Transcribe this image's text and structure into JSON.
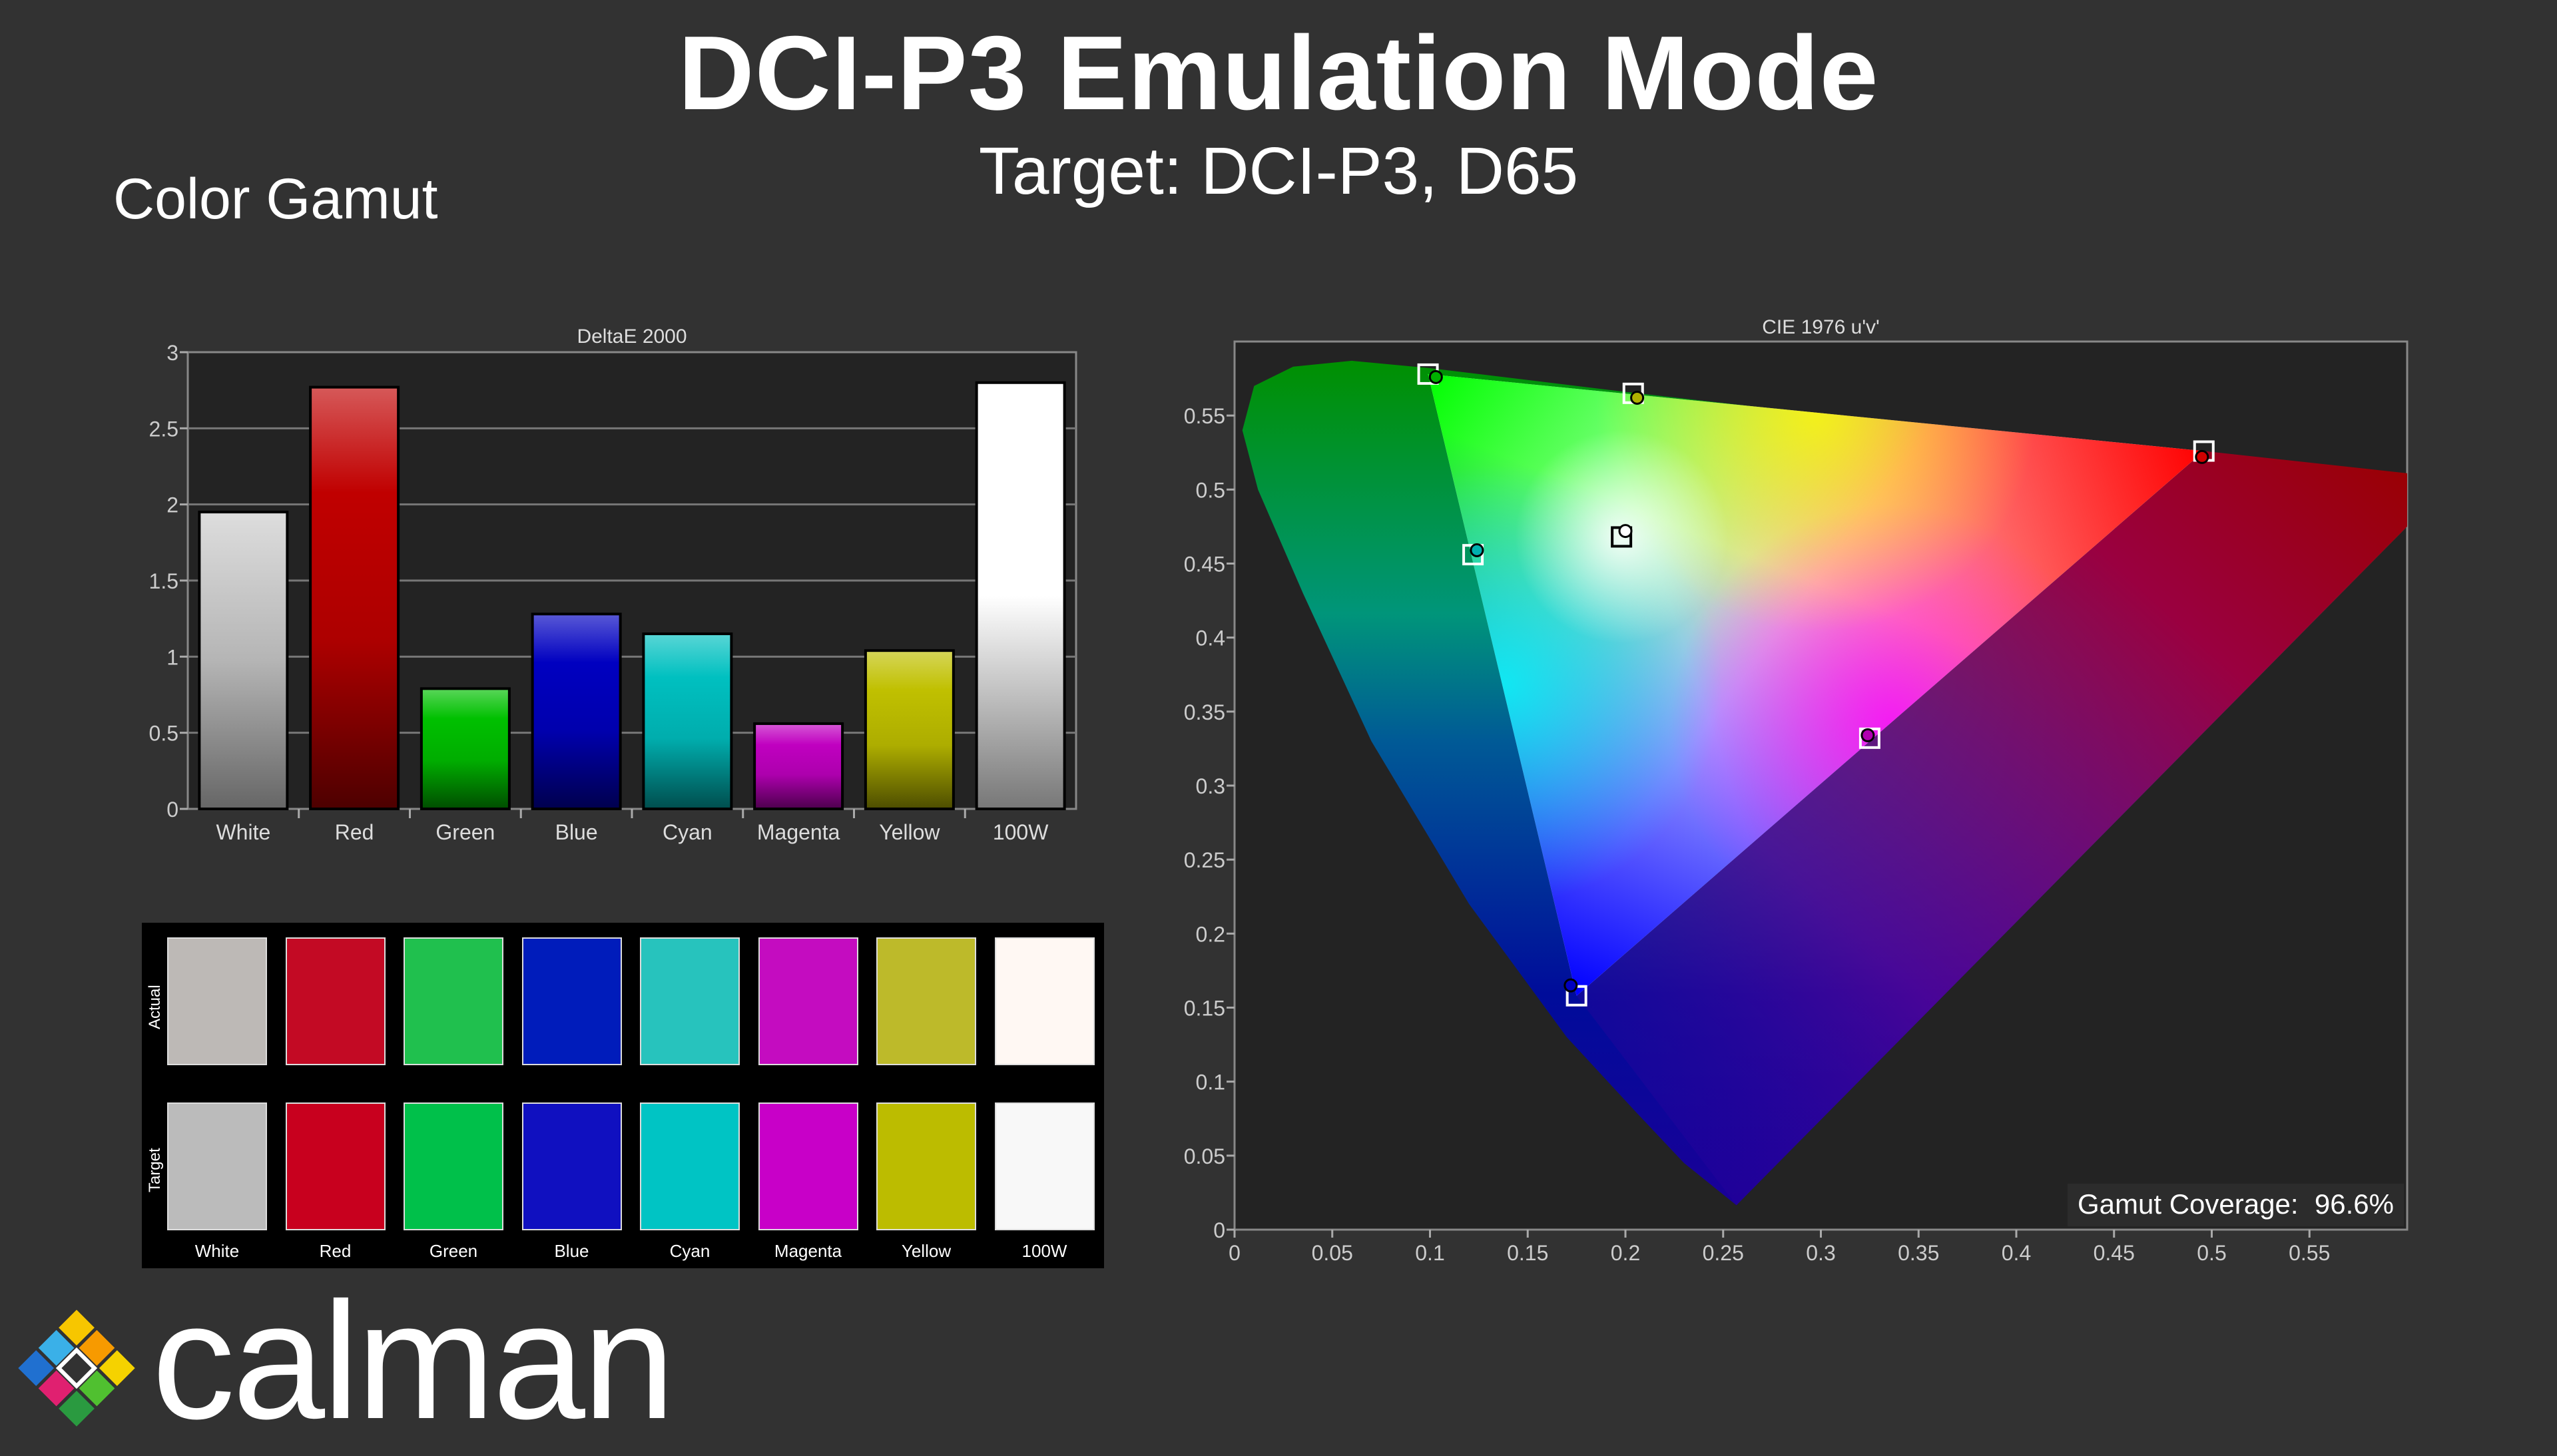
{
  "header": {
    "title": "DCI-P3 Emulation Mode",
    "subtitle": "Target: DCI-P3, D65",
    "section": "Color Gamut"
  },
  "logo": {
    "text": "calman"
  },
  "chart_data": [
    {
      "type": "bar",
      "title": "DeltaE 2000",
      "categories": [
        "White",
        "Red",
        "Green",
        "Blue",
        "Cyan",
        "Magenta",
        "Yellow",
        "100W"
      ],
      "values": [
        1.95,
        2.77,
        0.79,
        1.28,
        1.15,
        0.56,
        1.04,
        2.8
      ],
      "colors": [
        "#bdbdbd",
        "#c00000",
        "#00c000",
        "#0000c0",
        "#00c0c0",
        "#c000c0",
        "#c0c000",
        "#ffffff"
      ],
      "ylim": [
        0,
        3
      ],
      "yticks": [
        "0",
        "0.5",
        "1",
        "1.5",
        "2",
        "2.5",
        "3"
      ],
      "grid": true
    },
    {
      "type": "scatter",
      "title": "CIE 1976 u'v'",
      "xlim": [
        0,
        0.6
      ],
      "ylim": [
        0,
        0.6
      ],
      "xticks": [
        "0",
        "0.05",
        "0.1",
        "0.15",
        "0.2",
        "0.25",
        "0.3",
        "0.35",
        "0.4",
        "0.45",
        "0.5",
        "0.55"
      ],
      "yticks": [
        "0",
        "0.05",
        "0.1",
        "0.15",
        "0.2",
        "0.25",
        "0.3",
        "0.35",
        "0.4",
        "0.45",
        "0.5",
        "0.55"
      ],
      "targets": [
        {
          "name": "Red",
          "u": 0.496,
          "v": 0.526
        },
        {
          "name": "Green",
          "u": 0.099,
          "v": 0.578
        },
        {
          "name": "Blue",
          "u": 0.175,
          "v": 0.158
        },
        {
          "name": "White",
          "u": 0.198,
          "v": 0.468
        },
        {
          "name": "Cyan",
          "u": 0.122,
          "v": 0.456
        },
        {
          "name": "Magenta",
          "u": 0.325,
          "v": 0.332
        },
        {
          "name": "Yellow",
          "u": 0.204,
          "v": 0.565
        }
      ],
      "measured": [
        {
          "name": "Red",
          "u": 0.495,
          "v": 0.522,
          "color": "#d00000"
        },
        {
          "name": "Green",
          "u": 0.103,
          "v": 0.576,
          "color": "#00b000"
        },
        {
          "name": "Blue",
          "u": 0.172,
          "v": 0.165,
          "color": "#0000c0"
        },
        {
          "name": "White",
          "u": 0.2,
          "v": 0.472,
          "color": "#ffffff"
        },
        {
          "name": "Cyan",
          "u": 0.124,
          "v": 0.459,
          "color": "#00b0b0"
        },
        {
          "name": "Magenta",
          "u": 0.324,
          "v": 0.334,
          "color": "#b000b0"
        },
        {
          "name": "Yellow",
          "u": 0.206,
          "v": 0.562,
          "color": "#b0b000"
        }
      ],
      "gamut_label": "Gamut Coverage:",
      "gamut_value": "96.6%"
    }
  ],
  "swatches": {
    "row_labels": [
      "Actual",
      "Target"
    ],
    "labels": [
      "White",
      "Red",
      "Green",
      "Blue",
      "Cyan",
      "Magenta",
      "Yellow",
      "100W"
    ],
    "actual": [
      "#bdb9b6",
      "#c30a24",
      "#20c04e",
      "#001cbb",
      "#27c3bd",
      "#c40cc0",
      "#bdba2a",
      "#fff8f3"
    ],
    "target": [
      "#bbbbbb",
      "#c8001e",
      "#00c04a",
      "#1010c0",
      "#00c4c4",
      "#c800c8",
      "#bcbc00",
      "#f8f8f8"
    ]
  }
}
